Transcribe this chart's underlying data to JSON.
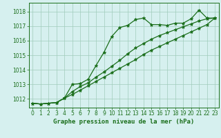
{
  "xlabel": "Graphe pression niveau de la mer (hPa)",
  "xlim": [
    -0.5,
    23.5
  ],
  "ylim": [
    1011.4,
    1018.6
  ],
  "yticks": [
    1012,
    1013,
    1014,
    1015,
    1016,
    1017,
    1018
  ],
  "xticks": [
    0,
    1,
    2,
    3,
    4,
    5,
    6,
    7,
    8,
    9,
    10,
    11,
    12,
    13,
    14,
    15,
    16,
    17,
    18,
    19,
    20,
    21,
    22,
    23
  ],
  "bg_color": "#d6f0ef",
  "line_color": "#1a6e1a",
  "grid_color": "#a0ccbb",
  "line1_x": [
    0,
    1,
    2,
    3,
    4,
    5,
    6,
    7,
    8,
    9,
    10,
    11,
    12,
    13,
    14,
    15,
    16,
    17,
    18,
    19,
    20,
    21,
    22,
    23
  ],
  "line1_y": [
    1011.7,
    1011.65,
    1011.7,
    1011.75,
    1012.05,
    1013.0,
    1013.05,
    1013.35,
    1014.3,
    1015.2,
    1016.3,
    1016.9,
    1017.05,
    1017.45,
    1017.55,
    1017.1,
    1017.1,
    1017.05,
    1017.2,
    1017.2,
    1017.5,
    1018.1,
    1017.55,
    1017.55
  ],
  "line2_x": [
    0,
    1,
    2,
    3,
    4,
    5,
    6,
    7,
    8,
    9,
    10,
    11,
    12,
    13,
    14,
    15,
    16,
    17,
    18,
    19,
    20,
    21,
    22,
    23
  ],
  "line2_y": [
    1011.7,
    1011.65,
    1011.7,
    1011.75,
    1012.05,
    1012.5,
    1012.85,
    1013.1,
    1013.5,
    1013.85,
    1014.25,
    1014.65,
    1015.1,
    1015.5,
    1015.8,
    1016.1,
    1016.35,
    1016.55,
    1016.75,
    1016.95,
    1017.15,
    1017.35,
    1017.5,
    1017.55
  ],
  "line3_x": [
    0,
    1,
    2,
    3,
    4,
    5,
    6,
    7,
    8,
    9,
    10,
    11,
    12,
    13,
    14,
    15,
    16,
    17,
    18,
    19,
    20,
    21,
    22,
    23
  ],
  "line3_y": [
    1011.7,
    1011.65,
    1011.7,
    1011.75,
    1012.05,
    1012.3,
    1012.6,
    1012.9,
    1013.2,
    1013.5,
    1013.8,
    1014.1,
    1014.4,
    1014.7,
    1015.05,
    1015.35,
    1015.6,
    1015.85,
    1016.1,
    1016.35,
    1016.6,
    1016.85,
    1017.1,
    1017.55
  ],
  "marker": "*",
  "markersize": 3.5,
  "linewidth": 0.9,
  "tick_labelsize": 5.5,
  "xlabel_fontsize": 6.5
}
